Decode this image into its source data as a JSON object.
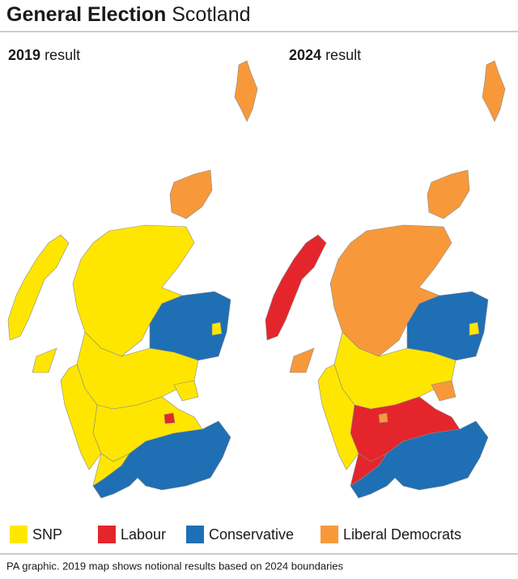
{
  "header": {
    "title_bold": "General Election",
    "title_regular": "Scotland"
  },
  "maps": [
    {
      "year": "2019",
      "label": "result"
    },
    {
      "year": "2024",
      "label": "result"
    }
  ],
  "legend": [
    {
      "name": "SNP",
      "color": "#ffe600"
    },
    {
      "name": "Labour",
      "color": "#e4262c"
    },
    {
      "name": "Conservative",
      "color": "#1f6fb5"
    },
    {
      "name": "Liberal Democrats",
      "color": "#f7993a"
    }
  ],
  "footnote": "PA graphic. 2019 map shows notional results based on 2024 boundaries"
}
